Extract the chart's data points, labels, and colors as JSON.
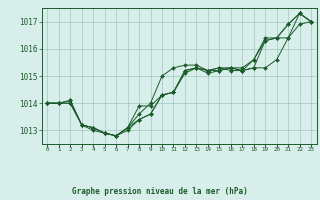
{
  "title": "Graphe pression niveau de la mer (hPa)",
  "xlabel_hours": [
    0,
    1,
    2,
    3,
    4,
    5,
    6,
    7,
    8,
    9,
    10,
    11,
    12,
    13,
    14,
    15,
    16,
    17,
    18,
    19,
    20,
    21,
    22,
    23
  ],
  "line1": [
    1014.0,
    1014.0,
    1014.1,
    1013.2,
    1013.1,
    1012.9,
    1012.8,
    1013.1,
    1013.9,
    1013.9,
    1014.3,
    1014.4,
    1015.2,
    1015.3,
    1015.1,
    1015.2,
    1015.3,
    1015.3,
    1015.6,
    1016.4,
    1016.4,
    1016.9,
    1017.3,
    1017.0
  ],
  "line2": [
    1014.0,
    1014.0,
    1014.1,
    1013.2,
    1013.1,
    1012.9,
    1012.8,
    1013.1,
    1013.6,
    1014.0,
    1015.0,
    1015.3,
    1015.4,
    1015.4,
    1015.2,
    1015.3,
    1015.3,
    1015.2,
    1015.3,
    1015.3,
    1015.6,
    1016.4,
    1016.9,
    1017.0
  ],
  "line3": [
    1014.0,
    1014.0,
    1014.0,
    1013.2,
    1013.1,
    1012.9,
    1012.8,
    1013.1,
    1013.4,
    1013.6,
    1014.3,
    1014.4,
    1015.2,
    1015.3,
    1015.2,
    1015.3,
    1015.2,
    1015.2,
    1015.3,
    1016.3,
    1016.4,
    1016.9,
    1017.3,
    1017.0
  ],
  "line4": [
    1014.0,
    1014.0,
    1014.0,
    1013.2,
    1013.0,
    1012.9,
    1012.8,
    1013.0,
    1013.4,
    1013.6,
    1014.3,
    1014.4,
    1015.1,
    1015.3,
    1015.2,
    1015.2,
    1015.3,
    1015.2,
    1015.6,
    1016.3,
    1016.4,
    1016.4,
    1017.3,
    1017.0
  ],
  "line_color": "#1a5c2a",
  "bg_color": "#d8eeea",
  "grid_color": "#a0c8be",
  "text_color": "#1a5c2a",
  "ylim": [
    1012.5,
    1017.5
  ],
  "yticks": [
    1013,
    1014,
    1015,
    1016,
    1017
  ],
  "xlim": [
    -0.5,
    23.5
  ],
  "figsize": [
    3.2,
    2.0
  ],
  "dpi": 100
}
